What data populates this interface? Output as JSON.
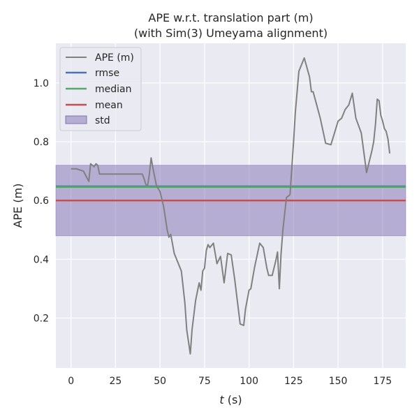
{
  "chart_data": {
    "type": "line",
    "title_line1": "APE w.r.t. translation part (m)",
    "title_line2": "(with Sim(3) Umeyama alignment)",
    "xlabel_var": "t",
    "xlabel_unit": " (s)",
    "ylabel": "APE (m)",
    "xlim": [
      -8.5,
      188
    ],
    "ylim": [
      0.03,
      1.135
    ],
    "xticks": [
      0,
      25,
      50,
      75,
      100,
      125,
      150,
      175
    ],
    "yticks": [
      0.2,
      0.4,
      0.6,
      0.8,
      1.0
    ],
    "ytick_labels": [
      "0.2",
      "0.4",
      "0.6",
      "0.8",
      "1.0"
    ],
    "grid": true,
    "legend_position": "top-left",
    "legend": [
      "APE (m)",
      "rmse",
      "median",
      "mean",
      "std"
    ],
    "colors": {
      "ape": "#808080",
      "rmse": "#4c72b0",
      "median": "#55a868",
      "mean": "#c44e52",
      "std": "#8172b2",
      "background": "#eaeaf2",
      "grid": "#ffffff"
    },
    "stats": {
      "rmse": 0.648,
      "median": 0.646,
      "mean": 0.6,
      "std_low": 0.48,
      "std_high": 0.72
    },
    "series": [
      {
        "name": "APE (m)",
        "x": [
          0,
          3,
          7,
          10,
          11,
          12,
          13,
          14,
          15,
          16,
          20,
          25,
          30,
          35,
          40,
          41,
          42,
          43,
          44,
          45,
          46,
          47,
          48,
          50,
          52,
          54,
          55,
          56,
          58,
          60,
          62,
          64,
          65,
          67,
          68,
          70,
          72,
          73,
          74,
          75,
          76,
          77,
          78,
          80,
          82,
          84,
          86,
          88,
          90,
          92,
          95,
          97,
          98,
          100,
          101,
          103,
          106,
          108,
          110,
          111,
          113,
          115,
          116,
          117,
          118,
          119,
          121,
          123,
          125,
          126,
          128,
          131,
          134,
          135,
          136,
          140,
          143,
          146,
          150,
          152,
          154,
          156,
          158,
          160,
          163,
          166,
          169,
          170,
          171,
          172,
          173,
          174,
          175,
          176,
          177,
          178,
          179
        ],
        "y": [
          0.708,
          0.708,
          0.7,
          0.665,
          0.725,
          0.72,
          0.715,
          0.725,
          0.72,
          0.69,
          0.69,
          0.69,
          0.69,
          0.69,
          0.69,
          0.675,
          0.655,
          0.65,
          0.69,
          0.745,
          0.71,
          0.68,
          0.65,
          0.63,
          0.58,
          0.5,
          0.475,
          0.485,
          0.42,
          0.39,
          0.36,
          0.25,
          0.16,
          0.078,
          0.16,
          0.26,
          0.32,
          0.295,
          0.36,
          0.37,
          0.43,
          0.45,
          0.44,
          0.455,
          0.385,
          0.41,
          0.32,
          0.42,
          0.415,
          0.33,
          0.18,
          0.175,
          0.23,
          0.295,
          0.3,
          0.37,
          0.455,
          0.44,
          0.37,
          0.345,
          0.345,
          0.395,
          0.425,
          0.3,
          0.42,
          0.5,
          0.61,
          0.62,
          0.8,
          0.9,
          1.04,
          1.085,
          1.02,
          0.97,
          0.97,
          0.88,
          0.795,
          0.79,
          0.87,
          0.88,
          0.91,
          0.925,
          0.965,
          0.88,
          0.83,
          0.695,
          0.77,
          0.8,
          0.86,
          0.945,
          0.94,
          0.89,
          0.87,
          0.845,
          0.835,
          0.81,
          0.76
        ]
      }
    ]
  }
}
